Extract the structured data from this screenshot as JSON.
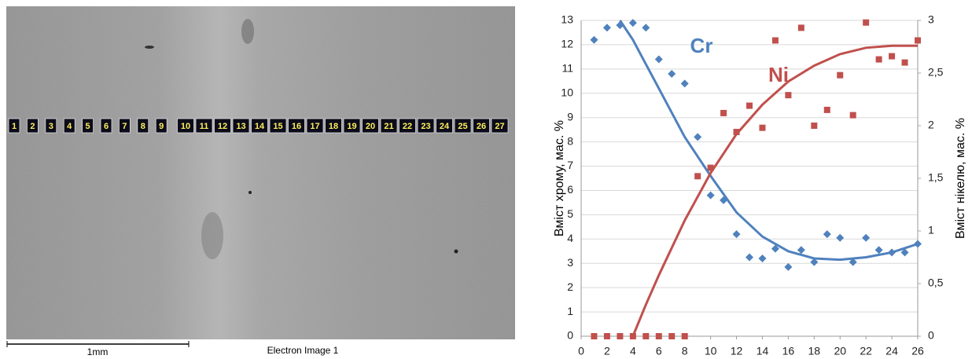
{
  "image": {
    "labels": [
      "1",
      "2",
      "3",
      "4",
      "5",
      "6",
      "7",
      "8",
      "9",
      "10",
      "11",
      "12",
      "13",
      "14",
      "15",
      "16",
      "17",
      "18",
      "19",
      "20",
      "21",
      "22",
      "23",
      "24",
      "25",
      "26",
      "27"
    ],
    "scale_bar": "1mm",
    "caption": "Electron Image 1"
  },
  "chart_data": {
    "type": "scatter",
    "x_label": "",
    "y_label": "Вміст хрому,  мас. %",
    "y2_label": "Вміст нікелю, мас. %",
    "xlim": [
      0,
      26
    ],
    "xticks": [
      0,
      2,
      4,
      6,
      8,
      10,
      12,
      14,
      16,
      18,
      20,
      22,
      24,
      26
    ],
    "ylim": [
      0,
      13
    ],
    "yticks": [
      0,
      1,
      2,
      3,
      4,
      5,
      6,
      7,
      8,
      9,
      10,
      11,
      12,
      13
    ],
    "y2lim": [
      0,
      3
    ],
    "y2ticks": [
      0,
      {
        "value": 0.5,
        "label": "0,5"
      },
      1,
      {
        "value": 1.5,
        "label": "1,5"
      },
      2,
      {
        "value": 2.5,
        "label": "2,5"
      },
      3
    ],
    "grid": true,
    "series": [
      {
        "name": "Cr",
        "color": "#4f81bd",
        "marker": "diamond",
        "x": [
          1,
          2,
          3,
          4,
          5,
          6,
          7,
          8,
          9,
          10,
          11,
          12,
          13,
          14,
          15,
          16,
          17,
          18,
          19,
          20,
          21,
          22,
          23,
          24,
          25,
          26
        ],
        "values": [
          12.2,
          12.7,
          12.8,
          12.9,
          12.7,
          11.4,
          10.8,
          10.4,
          8.2,
          5.8,
          5.6,
          4.2,
          3.25,
          3.2,
          3.6,
          2.85,
          3.55,
          3.05,
          4.2,
          4.05,
          3.05,
          4.05,
          3.55,
          3.45,
          3.45,
          3.8
        ],
        "trendline": {
          "x": [
            3,
            4,
            5,
            6,
            8,
            10,
            12,
            14,
            16,
            18,
            20,
            22,
            24,
            26
          ],
          "values": [
            13,
            12.2,
            11.2,
            10.2,
            8.2,
            6.6,
            5.1,
            4.1,
            3.5,
            3.2,
            3.15,
            3.25,
            3.45,
            3.8
          ]
        }
      },
      {
        "name": "Ni",
        "color": "#c0504d",
        "marker": "square",
        "axis": "y2",
        "x": [
          1,
          2,
          3,
          4,
          5,
          6,
          7,
          8,
          9,
          10,
          11,
          12,
          13,
          14,
          15,
          16,
          17,
          18,
          19,
          20,
          21,
          22,
          23,
          24,
          25,
          26
        ],
        "values": [
          0,
          0,
          0,
          0,
          0,
          0,
          0,
          0,
          1.52,
          1.6,
          2.12,
          1.94,
          2.19,
          1.98,
          2.81,
          2.29,
          2.93,
          2.0,
          2.15,
          2.48,
          2.1,
          2.98,
          2.63,
          2.66,
          2.6,
          2.81
        ],
        "trendline": {
          "x": [
            4,
            5,
            6,
            8,
            10,
            12,
            14,
            16,
            18,
            20,
            22,
            24,
            26
          ],
          "values": [
            0,
            0.3,
            0.58,
            1.1,
            1.55,
            1.92,
            2.2,
            2.42,
            2.57,
            2.68,
            2.74,
            2.76,
            2.76
          ]
        }
      }
    ]
  }
}
